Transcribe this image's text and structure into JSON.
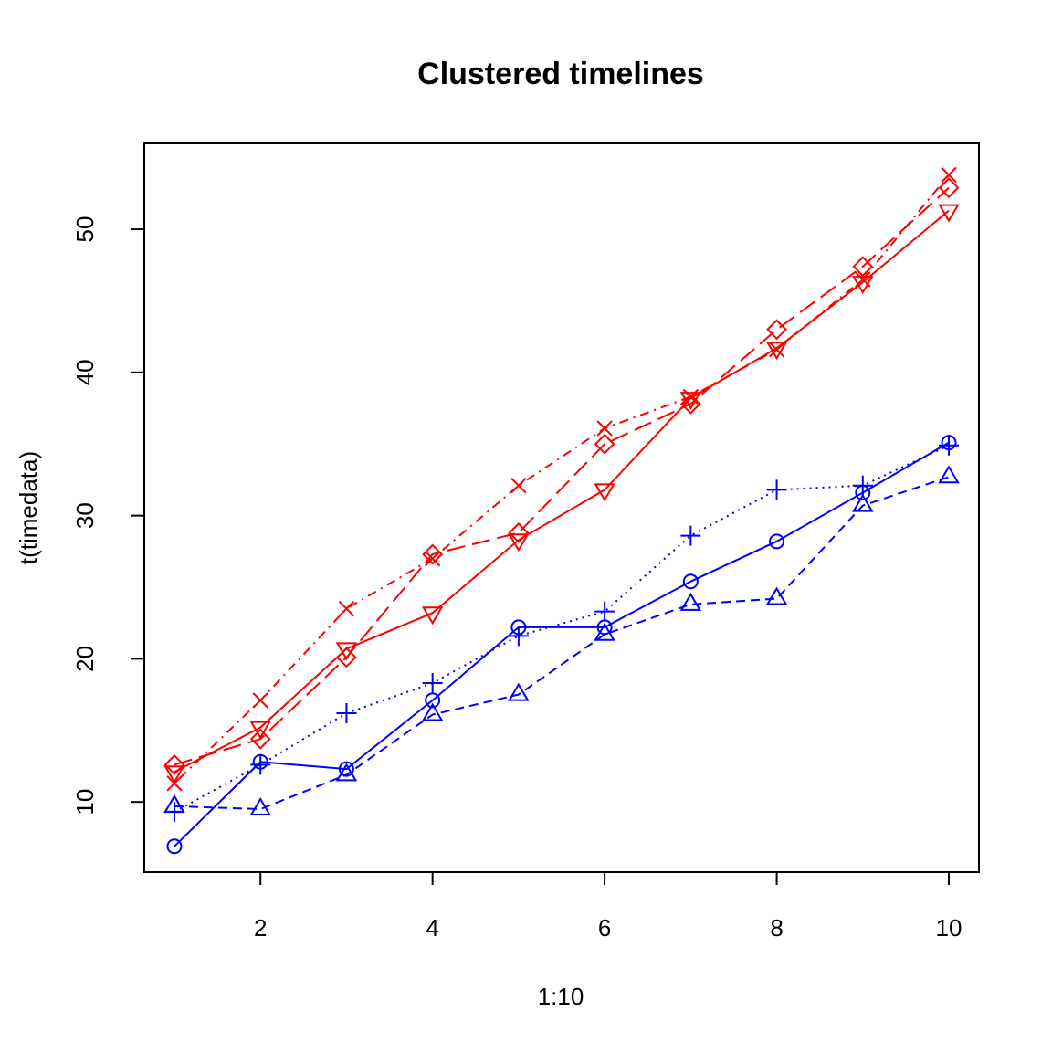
{
  "chart_data": {
    "type": "line",
    "title": "Clustered timelines",
    "xlabel": "1:10",
    "ylabel": "t(timedata)",
    "x": [
      1,
      2,
      3,
      4,
      5,
      6,
      7,
      8,
      9,
      10
    ],
    "xlim": [
      0.65,
      10.35
    ],
    "ylim": [
      5.1,
      56.0
    ],
    "x_ticks": [
      2,
      4,
      6,
      8,
      10
    ],
    "y_ticks": [
      10,
      20,
      30,
      40,
      50
    ],
    "grid": false,
    "legend": "none",
    "series": [
      {
        "color": "#0000ff",
        "line": "solid",
        "marker": "circle",
        "values": [
          6.9,
          12.8,
          12.3,
          17.1,
          22.2,
          22.2,
          25.4,
          28.2,
          31.6,
          35.1
        ]
      },
      {
        "color": "#0000ff",
        "line": "dashed",
        "marker": "triangle-up",
        "values": [
          9.7,
          9.5,
          11.9,
          16.1,
          17.5,
          21.7,
          23.8,
          24.2,
          30.7,
          32.7
        ]
      },
      {
        "color": "#0000ff",
        "line": "dotted",
        "marker": "plus",
        "values": [
          9.3,
          12.6,
          16.2,
          18.3,
          21.6,
          23.3,
          28.6,
          31.8,
          32.1,
          34.9
        ]
      },
      {
        "color": "#ff0000",
        "line": "solid",
        "marker": "triangle-down",
        "values": [
          12.1,
          15.2,
          20.7,
          23.2,
          28.3,
          31.8,
          38.2,
          41.7,
          46.3,
          51.3
        ]
      },
      {
        "color": "#ff0000",
        "line": "longdash",
        "marker": "diamond",
        "values": [
          12.6,
          14.4,
          20.1,
          27.3,
          28.8,
          35.0,
          37.8,
          43.0,
          47.4,
          52.9
        ]
      },
      {
        "color": "#ff0000",
        "line": "dotdash",
        "marker": "cross",
        "values": [
          11.3,
          17.1,
          23.5,
          27.0,
          32.1,
          36.1,
          38.3,
          41.6,
          46.5,
          53.8
        ]
      }
    ]
  }
}
